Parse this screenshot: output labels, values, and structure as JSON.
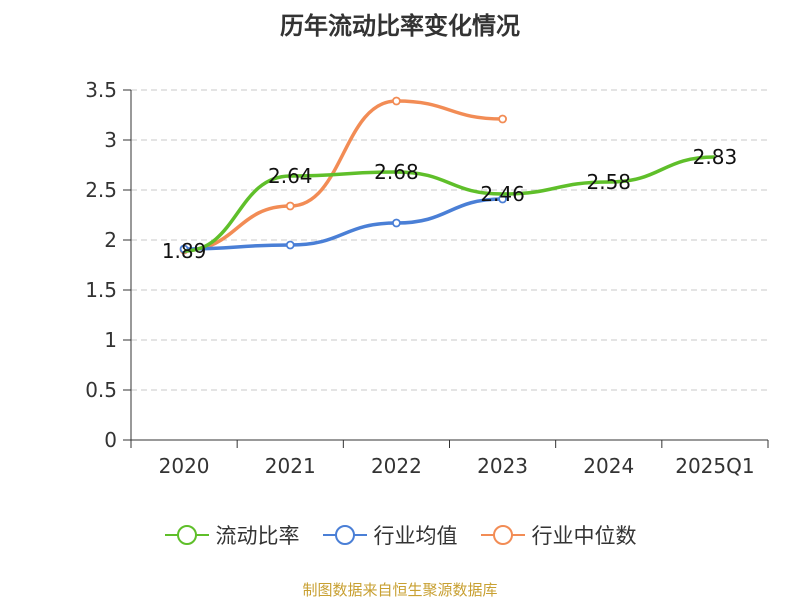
{
  "chart_data": {
    "type": "line",
    "title": "历年流动比率变化情况",
    "categories": [
      "2020",
      "2021",
      "2022",
      "2023",
      "2024",
      "2025Q1"
    ],
    "ylim": [
      0,
      3.5
    ],
    "yticks": [
      "0",
      "0.5",
      "1",
      "1.5",
      "2",
      "2.5",
      "3",
      "3.5"
    ],
    "grid": true,
    "legend_position": "bottom",
    "series": [
      {
        "name": "流动比率",
        "color": "#5fbf2a",
        "values": [
          1.89,
          2.64,
          2.68,
          2.46,
          2.58,
          2.83
        ],
        "labels": [
          "1.89",
          "2.64",
          "2.68",
          "2.46",
          "2.58",
          "2.83"
        ]
      },
      {
        "name": "行业均值",
        "color": "#4a7fd6",
        "values": [
          1.91,
          1.95,
          2.17,
          2.41,
          null,
          null
        ]
      },
      {
        "name": "行业中位数",
        "color": "#f28c55",
        "values": [
          1.9,
          2.34,
          3.39,
          3.21,
          null,
          null
        ]
      }
    ]
  },
  "source": "制图数据来自恒生聚源数据库"
}
